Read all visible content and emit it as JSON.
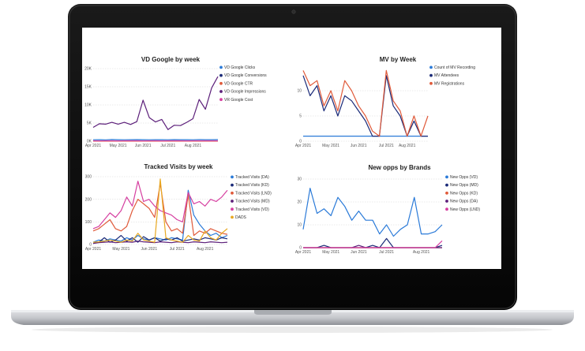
{
  "colors": {
    "bezel": "#0c0c0c",
    "body": "#cfd1d4",
    "base_dark": "#9ea1a6",
    "screen": "#ffffff"
  },
  "chart_data": [
    {
      "type": "line",
      "title": "VD Google by week",
      "x": [
        0,
        1,
        2,
        3,
        4,
        5,
        6,
        7,
        8,
        9,
        10,
        11,
        12,
        13,
        14,
        15,
        16,
        17,
        18,
        19,
        20
      ],
      "xticks": [
        "Apr 2021",
        "May 2021",
        "Jun 2021",
        "Jul 2021",
        "Aug 2021"
      ],
      "xtick_pos": [
        0,
        4,
        8,
        12,
        16
      ],
      "ylim": [
        0,
        20000
      ],
      "yticks": [
        0,
        5000,
        10000,
        15000,
        20000
      ],
      "ytick_labels": [
        "0K",
        "5K",
        "10K",
        "15K",
        "20K"
      ],
      "legend_position": "right",
      "series": [
        {
          "name": "VD Google Clicks",
          "color": "#2a7ad8",
          "values": [
            400,
            420,
            380,
            450,
            410,
            390,
            420,
            430,
            410,
            400,
            420,
            410,
            390,
            430,
            410,
            420,
            400,
            430,
            410,
            420,
            440
          ]
        },
        {
          "name": "VD Google Conversions",
          "color": "#1a2a78",
          "values": [
            50,
            60,
            55,
            50,
            60,
            55,
            50,
            60,
            55,
            60,
            50,
            55,
            60,
            50,
            55,
            60,
            50,
            55,
            60,
            55,
            60
          ]
        },
        {
          "name": "VD Google CTR",
          "color": "#e05a3a",
          "values": [
            20,
            20,
            20,
            20,
            20,
            20,
            20,
            20,
            20,
            20,
            20,
            20,
            20,
            20,
            20,
            20,
            20,
            20,
            20,
            20,
            20
          ]
        },
        {
          "name": "VD Google Impressions",
          "color": "#5c1f7a",
          "values": [
            3800,
            4800,
            4700,
            5200,
            4700,
            5200,
            4600,
            5400,
            11300,
            6500,
            5300,
            6000,
            3200,
            4400,
            4300,
            5200,
            6200,
            11500,
            8800,
            14700,
            17800
          ]
        },
        {
          "name": "VR Google Cost",
          "color": "#d63fa0",
          "values": [
            100,
            90,
            110,
            100,
            95,
            105,
            100,
            110,
            90,
            100,
            105,
            95,
            100,
            110,
            100,
            95,
            105,
            100,
            110,
            100,
            105
          ]
        }
      ]
    },
    {
      "type": "line",
      "title": "MV by Week",
      "x": [
        0,
        1,
        2,
        3,
        4,
        5,
        6,
        7,
        8,
        9,
        10,
        11,
        12,
        13,
        14,
        15,
        16,
        17,
        18
      ],
      "xticks": [
        "Apr 2021",
        "May 2021",
        "Jun 2021",
        "Jul 2021",
        "Aug 2021"
      ],
      "xtick_pos": [
        0,
        4,
        8,
        12,
        15
      ],
      "ylim": [
        0,
        15
      ],
      "yticks": [
        0,
        5,
        10
      ],
      "ytick_labels": [
        "0",
        "5",
        "10"
      ],
      "legend_position": "right",
      "series": [
        {
          "name": "Count of MV Recording",
          "color": "#2a7ad8",
          "values": [
            1,
            1,
            1,
            1,
            1,
            1,
            1,
            1,
            1,
            1,
            1,
            1,
            1,
            1,
            1,
            1,
            1,
            1,
            1
          ]
        },
        {
          "name": "MV Attendees",
          "color": "#1a2a78",
          "values": [
            13,
            9,
            11,
            6,
            9,
            5,
            9,
            8,
            6,
            4,
            1,
            1,
            13,
            7,
            5,
            1,
            4,
            1,
            1
          ]
        },
        {
          "name": "MV Registrations",
          "color": "#e05a3a",
          "values": [
            14,
            11,
            12,
            7,
            10,
            6,
            12,
            10,
            7,
            5,
            2,
            1,
            14,
            8,
            6,
            1,
            5,
            1,
            5
          ]
        }
      ]
    },
    {
      "type": "line",
      "title": "Tracked Visits by week",
      "x": [
        0,
        1,
        2,
        3,
        4,
        5,
        6,
        7,
        8,
        9,
        10,
        11,
        12,
        13,
        14,
        15,
        16,
        17,
        18,
        19,
        20,
        21,
        22,
        23,
        24
      ],
      "xticks": [
        "Apr 2021",
        "May 2021",
        "Jun 2021",
        "Jul 2021",
        "Aug 2021"
      ],
      "xtick_pos": [
        0,
        5,
        10,
        15,
        20
      ],
      "ylim": [
        0,
        300
      ],
      "yticks": [
        0,
        100,
        200,
        300
      ],
      "ytick_labels": [
        "0",
        "100",
        "200",
        "300"
      ],
      "legend_position": "right",
      "series": [
        {
          "name": "Tracked Visits (DA)",
          "color": "#2a7ad8",
          "values": [
            10,
            20,
            15,
            25,
            20,
            15,
            30,
            20,
            40,
            25,
            20,
            30,
            25,
            20,
            30,
            25,
            20,
            240,
            130,
            90,
            60,
            40,
            50,
            30,
            40
          ]
        },
        {
          "name": "Tracked Visits (KD)",
          "color": "#1a2a78",
          "values": [
            5,
            10,
            30,
            10,
            20,
            40,
            15,
            30,
            10,
            35,
            20,
            30,
            15,
            25,
            20,
            30,
            15,
            20,
            25,
            20,
            30,
            25,
            20,
            30,
            25
          ]
        },
        {
          "name": "Tracked Visits (LND)",
          "color": "#e05a3a",
          "values": [
            60,
            70,
            90,
            110,
            70,
            60,
            80,
            150,
            200,
            180,
            160,
            120,
            270,
            100,
            60,
            70,
            50,
            220,
            40,
            60,
            50,
            70,
            60,
            50,
            45
          ]
        },
        {
          "name": "Tracked Visits (MD)",
          "color": "#5c1f7a",
          "values": [
            5,
            8,
            10,
            12,
            8,
            10,
            12,
            10,
            15,
            12,
            10,
            8,
            12,
            10,
            8,
            12,
            10,
            8,
            12,
            10,
            8,
            12,
            10,
            8,
            10
          ]
        },
        {
          "name": "Tracked Visits (VD)",
          "color": "#d63fa0",
          "values": [
            70,
            80,
            110,
            140,
            120,
            150,
            210,
            170,
            280,
            190,
            200,
            170,
            150,
            140,
            130,
            110,
            100,
            230,
            180,
            190,
            170,
            200,
            190,
            210,
            240
          ]
        },
        {
          "name": "DADS",
          "color": "#e8a820",
          "values": [
            10,
            12,
            15,
            20,
            15,
            10,
            20,
            15,
            50,
            20,
            15,
            10,
            290,
            30,
            20,
            15,
            10,
            40,
            20,
            15,
            60,
            30,
            20,
            50,
            70
          ]
        }
      ]
    },
    {
      "type": "line",
      "title": "New opps by Brands",
      "x": [
        0,
        1,
        2,
        3,
        4,
        5,
        6,
        7,
        8,
        9,
        10,
        11,
        12,
        13,
        14,
        15,
        16,
        17,
        18,
        19,
        20
      ],
      "xticks": [
        "Apr 2021",
        "May 2021",
        "Jun 2021",
        "Jul 2021",
        "Aug 2021"
      ],
      "xtick_pos": [
        0,
        4,
        8,
        12,
        17
      ],
      "ylim": [
        0,
        30
      ],
      "yticks": [
        0,
        10,
        20,
        30
      ],
      "ytick_labels": [
        "0",
        "10",
        "20",
        "30"
      ],
      "legend_position": "right",
      "series": [
        {
          "name": "New Opps (VD)",
          "color": "#2a7ad8",
          "values": [
            8,
            26,
            15,
            17,
            14,
            22,
            18,
            12,
            16,
            12,
            12,
            6,
            10,
            5,
            8,
            10,
            22,
            6,
            6,
            7,
            10
          ]
        },
        {
          "name": "New Opps (MD)",
          "color": "#1a2a78",
          "values": [
            0,
            0,
            0,
            1,
            0,
            0,
            0,
            0,
            0,
            0,
            1,
            0,
            4,
            0,
            0,
            0,
            0,
            0,
            0,
            0,
            1
          ]
        },
        {
          "name": "New Opps (KD)",
          "color": "#e05a3a",
          "values": [
            0,
            0,
            0,
            0,
            0,
            0,
            0,
            0,
            0,
            0,
            0,
            0,
            0,
            0,
            0,
            0,
            0,
            0,
            0,
            0,
            0
          ]
        },
        {
          "name": "New Opps (DA)",
          "color": "#5c1f7a",
          "values": [
            0,
            0,
            0,
            0,
            0,
            0,
            0,
            0,
            1,
            0,
            0,
            0,
            0,
            0,
            0,
            0,
            0,
            0,
            0,
            0,
            0
          ]
        },
        {
          "name": "New Opps (LND)",
          "color": "#d63fa0",
          "values": [
            0,
            0,
            0,
            0,
            0,
            0,
            0,
            0,
            0,
            0,
            0,
            0,
            0,
            0,
            0,
            0,
            0,
            0,
            0,
            0,
            3
          ]
        }
      ]
    }
  ]
}
